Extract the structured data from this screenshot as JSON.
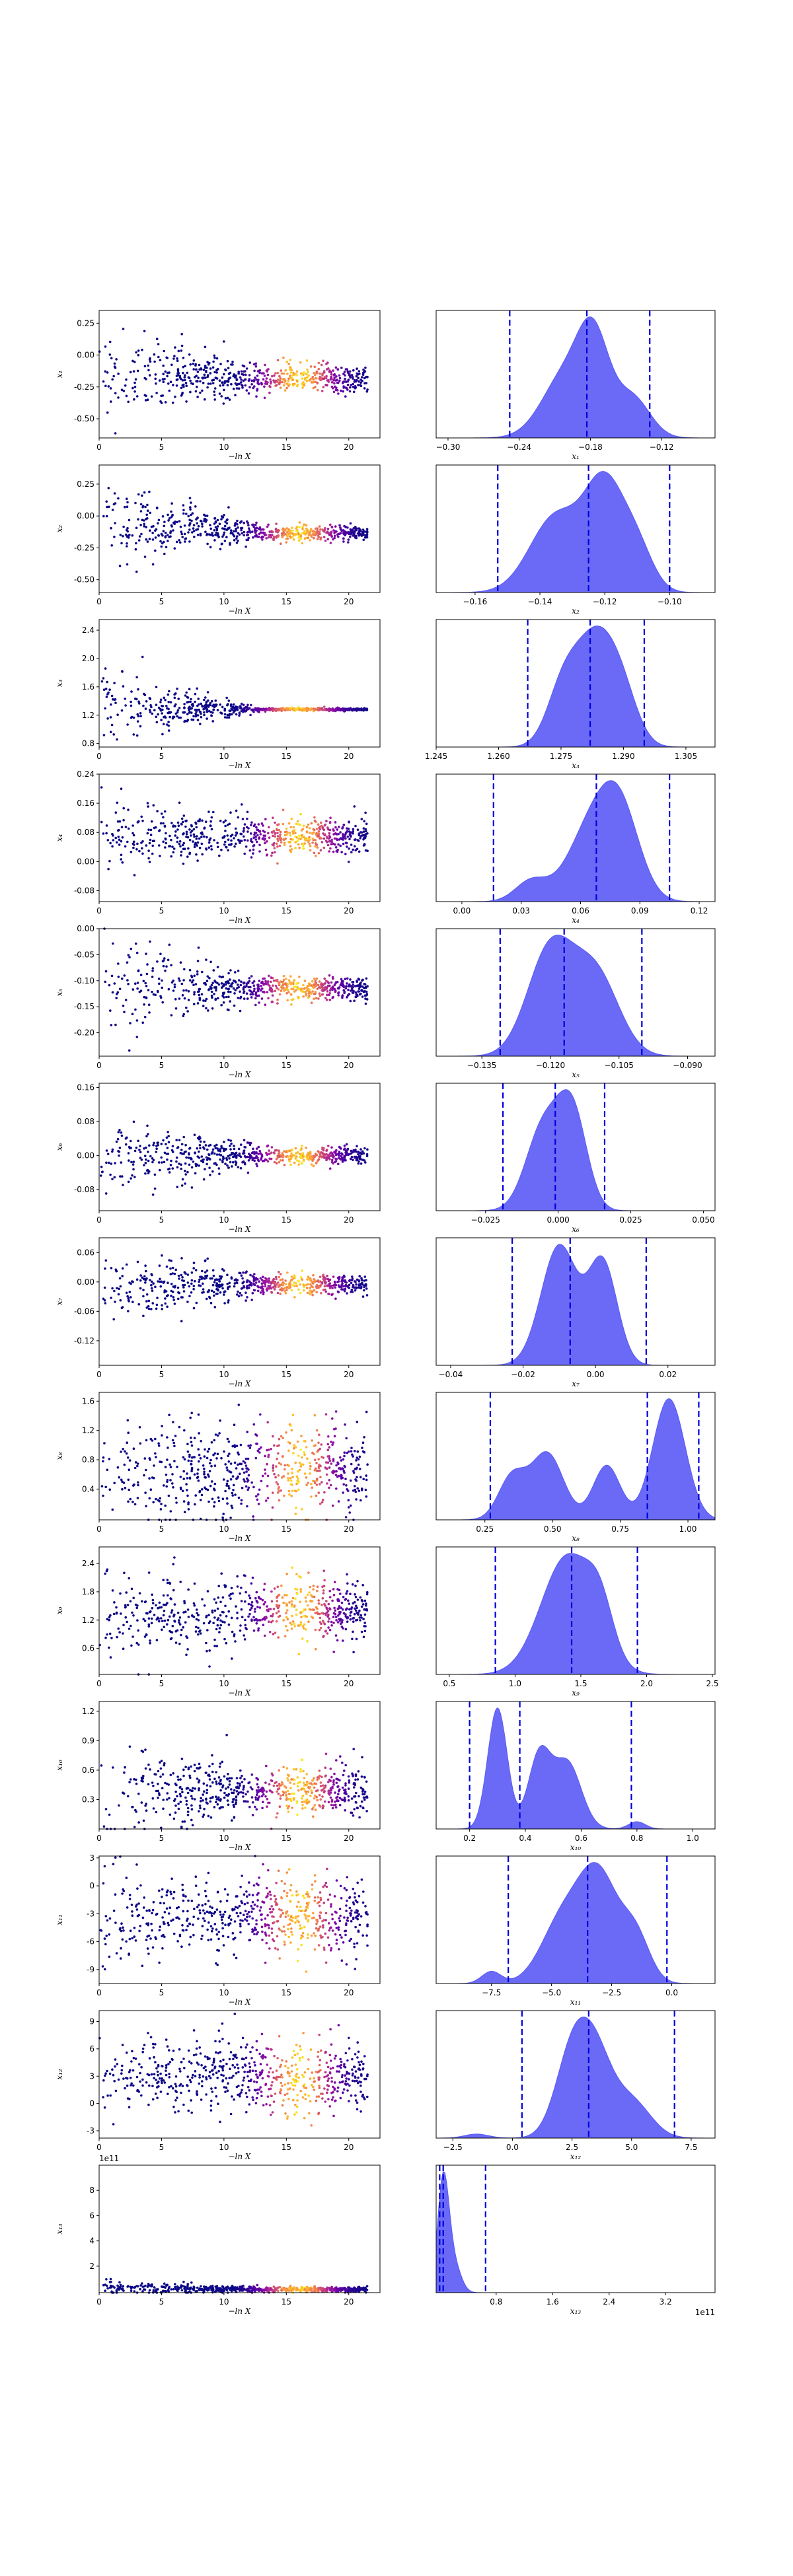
{
  "figure": {
    "trace_xlabel": "−ln X",
    "colormap": [
      "#0d0887",
      "#46039f",
      "#7201a8",
      "#9c179e",
      "#bd3786",
      "#d8576b",
      "#ed7953",
      "#fb9f3a",
      "#fdca26",
      "#f0f921"
    ],
    "kde_fill": "#5a5af5",
    "quantile_line_color": "#0000dd",
    "axis_color": "#000000"
  },
  "chart_data": [
    {
      "type": "scatter",
      "panel": "trace",
      "param": "x1",
      "ylabel": "x₁",
      "xlim": [
        0,
        22.5
      ],
      "ylim": [
        -0.65,
        0.35
      ],
      "xticks": [
        "0",
        "5",
        "10",
        "15",
        "20"
      ],
      "yticks": [
        "-0.50",
        "-0.25",
        "0.00",
        "0.25"
      ],
      "start": [
        -0.15,
        0.18
      ],
      "converge": -0.18,
      "spread": 0.05
    },
    {
      "type": "area",
      "panel": "kde",
      "param": "x1",
      "xlabel": "x₁",
      "xlim": [
        -0.31,
        -0.075
      ],
      "xticks": [
        "−0.30",
        "−0.24",
        "−0.18",
        "−0.12"
      ],
      "quantiles": [
        -0.248,
        -0.183,
        -0.13
      ],
      "peaks": [
        [
          -0.2,
          0.8,
          0.02
        ],
        [
          -0.177,
          1.0,
          0.013
        ],
        [
          -0.145,
          0.5,
          0.015
        ]
      ]
    },
    {
      "type": "scatter",
      "panel": "trace",
      "param": "x2",
      "ylabel": "x₂",
      "xlim": [
        0,
        22.5
      ],
      "ylim": [
        -0.6,
        0.4
      ],
      "xticks": [
        "0",
        "5",
        "10",
        "15",
        "20"
      ],
      "yticks": [
        "-0.50",
        "-0.25",
        "0.00",
        "0.25"
      ],
      "start": [
        -0.05,
        0.18
      ],
      "converge": -0.13,
      "spread": 0.03
    },
    {
      "type": "area",
      "panel": "kde",
      "param": "x2",
      "xlabel": "x₂",
      "xlim": [
        -0.172,
        -0.086
      ],
      "xticks": [
        "−0.16",
        "−0.14",
        "−0.12",
        "−0.10"
      ],
      "quantiles": [
        -0.153,
        -0.125,
        -0.1
      ],
      "peaks": [
        [
          -0.135,
          0.75,
          0.008
        ],
        [
          -0.12,
          1.0,
          0.006
        ],
        [
          -0.11,
          0.4,
          0.005
        ]
      ]
    },
    {
      "type": "scatter",
      "panel": "trace",
      "param": "x3",
      "ylabel": "x₃",
      "xlim": [
        0,
        22.5
      ],
      "ylim": [
        0.75,
        2.55
      ],
      "xticks": [
        "0",
        "5",
        "10",
        "15",
        "20"
      ],
      "yticks": [
        "0.8",
        "1.2",
        "1.6",
        "2.0",
        "2.4"
      ],
      "start": [
        1.3,
        0.25
      ],
      "converge": 1.28,
      "spread": 0.01
    },
    {
      "type": "area",
      "panel": "kde",
      "param": "x3",
      "xlabel": "x₃",
      "xlim": [
        1.245,
        1.312
      ],
      "xticks": [
        "1.245",
        "1.260",
        "1.275",
        "1.290",
        "1.305"
      ],
      "quantiles": [
        1.267,
        1.282,
        1.295
      ],
      "peaks": [
        [
          1.276,
          0.8,
          0.004
        ],
        [
          1.283,
          1.0,
          0.004
        ],
        [
          1.289,
          0.75,
          0.004
        ]
      ]
    },
    {
      "type": "scatter",
      "panel": "trace",
      "param": "x4",
      "ylabel": "x₄",
      "xlim": [
        0,
        22.5
      ],
      "ylim": [
        -0.11,
        0.24
      ],
      "xticks": [
        "0",
        "5",
        "10",
        "15",
        "20"
      ],
      "yticks": [
        "-0.08",
        "0.00",
        "0.08",
        "0.16",
        "0.24"
      ],
      "start": [
        0.07,
        0.05
      ],
      "converge": 0.07,
      "spread": 0.025
    },
    {
      "type": "area",
      "panel": "kde",
      "param": "x4",
      "xlabel": "x₄",
      "xlim": [
        -0.013,
        0.128
      ],
      "xticks": [
        "0.00",
        "0.03",
        "0.06",
        "0.09",
        "0.12"
      ],
      "quantiles": [
        0.016,
        0.068,
        0.105
      ],
      "peaks": [
        [
          0.035,
          0.25,
          0.008
        ],
        [
          0.065,
          0.85,
          0.012
        ],
        [
          0.08,
          1.0,
          0.01
        ]
      ]
    },
    {
      "type": "scatter",
      "panel": "trace",
      "param": "x5",
      "ylabel": "x₅",
      "xlim": [
        0,
        22.5
      ],
      "ylim": [
        -0.245,
        0.0
      ],
      "xticks": [
        "0",
        "5",
        "10",
        "15",
        "20"
      ],
      "yticks": [
        "-0.20",
        "-0.15",
        "-0.10",
        "-0.05",
        "0.00"
      ],
      "start": [
        -0.11,
        0.05
      ],
      "converge": -0.115,
      "spread": 0.012
    },
    {
      "type": "area",
      "panel": "kde",
      "param": "x5",
      "xlabel": "x₅",
      "xlim": [
        -0.145,
        -0.084
      ],
      "xticks": [
        "−0.135",
        "−0.120",
        "−0.105",
        "−0.090"
      ],
      "quantiles": [
        -0.131,
        -0.117,
        -0.1
      ],
      "peaks": [
        [
          -0.12,
          1.0,
          0.005
        ],
        [
          -0.11,
          0.75,
          0.005
        ]
      ]
    },
    {
      "type": "scatter",
      "panel": "trace",
      "param": "x6",
      "ylabel": "x₆",
      "xlim": [
        0,
        22.5
      ],
      "ylim": [
        -0.13,
        0.17
      ],
      "xticks": [
        "0",
        "5",
        "10",
        "15",
        "20"
      ],
      "yticks": [
        "-0.08",
        "0.00",
        "0.08",
        "0.16"
      ],
      "start": [
        0.0,
        0.05
      ],
      "converge": 0.0,
      "spread": 0.01
    },
    {
      "type": "area",
      "panel": "kde",
      "param": "x6",
      "xlabel": "x₆",
      "xlim": [
        -0.042,
        0.054
      ],
      "xticks": [
        "−0.025",
        "0.000",
        "0.025",
        "0.050"
      ],
      "quantiles": [
        -0.019,
        -0.001,
        0.016
      ],
      "peaks": [
        [
          -0.005,
          0.9,
          0.006
        ],
        [
          0.005,
          1.0,
          0.005
        ]
      ]
    },
    {
      "type": "scatter",
      "panel": "trace",
      "param": "x7",
      "ylabel": "x₇",
      "xlim": [
        0,
        22.5
      ],
      "ylim": [
        -0.17,
        0.09
      ],
      "xticks": [
        "0",
        "5",
        "10",
        "15",
        "20"
      ],
      "yticks": [
        "-0.12",
        "-0.06",
        "0.00",
        "0.06"
      ],
      "start": [
        -0.01,
        0.04
      ],
      "converge": -0.005,
      "spread": 0.01
    },
    {
      "type": "area",
      "panel": "kde",
      "param": "x7",
      "xlabel": "x₇",
      "xlim": [
        -0.044,
        0.033
      ],
      "xticks": [
        "−0.04",
        "−0.02",
        "0.00",
        "0.02"
      ],
      "quantiles": [
        -0.023,
        -0.007,
        0.014
      ],
      "peaks": [
        [
          -0.01,
          1.0,
          0.005
        ],
        [
          0.002,
          0.85,
          0.004
        ]
      ]
    },
    {
      "type": "scatter",
      "panel": "trace",
      "param": "x8",
      "ylabel": "x₈",
      "xlim": [
        0,
        22.5
      ],
      "ylim": [
        -0.02,
        1.72
      ],
      "xticks": [
        "0",
        "5",
        "10",
        "15",
        "20"
      ],
      "yticks": [
        "0.4",
        "0.8",
        "1.2",
        "1.6"
      ],
      "start": [
        0.6,
        0.4
      ],
      "converge": 0.7,
      "spread": 0.3
    },
    {
      "type": "area",
      "panel": "kde",
      "param": "x8",
      "xlabel": "x₈",
      "xlim": [
        0.07,
        1.1
      ],
      "xticks": [
        "0.25",
        "0.50",
        "0.75",
        "1.00"
      ],
      "quantiles": [
        0.27,
        0.85,
        1.04
      ],
      "peaks": [
        [
          0.35,
          0.35,
          0.05
        ],
        [
          0.48,
          0.55,
          0.06
        ],
        [
          0.7,
          0.45,
          0.05
        ],
        [
          0.93,
          1.0,
          0.06
        ]
      ]
    },
    {
      "type": "scatter",
      "panel": "trace",
      "param": "x9",
      "ylabel": "x₉",
      "xlim": [
        0,
        22.5
      ],
      "ylim": [
        0.05,
        2.75
      ],
      "xticks": [
        "0",
        "5",
        "10",
        "15",
        "20"
      ],
      "yticks": [
        "0.6",
        "1.2",
        "1.8",
        "2.4"
      ],
      "start": [
        1.3,
        0.55
      ],
      "converge": 1.4,
      "spread": 0.3
    },
    {
      "type": "area",
      "panel": "kde",
      "param": "x9",
      "xlabel": "x₉",
      "xlim": [
        0.4,
        2.52
      ],
      "xticks": [
        "0.5",
        "1.0",
        "1.5",
        "2.0",
        "2.5"
      ],
      "quantiles": [
        0.85,
        1.43,
        1.93
      ],
      "peaks": [
        [
          1.4,
          1.0,
          0.2
        ],
        [
          1.65,
          0.35,
          0.1
        ]
      ]
    },
    {
      "type": "scatter",
      "panel": "trace",
      "param": "x10",
      "ylabel": "x₁₀",
      "xlim": [
        0,
        22.5
      ],
      "ylim": [
        0.0,
        1.3
      ],
      "xticks": [
        "0",
        "5",
        "10",
        "15",
        "20"
      ],
      "yticks": [
        "0.3",
        "0.6",
        "0.9",
        "1.2"
      ],
      "start": [
        0.4,
        0.25
      ],
      "converge": 0.4,
      "spread": 0.12
    },
    {
      "type": "area",
      "panel": "kde",
      "param": "x10",
      "xlabel": "x₁₀",
      "xlim": [
        0.08,
        1.08
      ],
      "xticks": [
        "0.2",
        "0.4",
        "0.6",
        "0.8",
        "1.0"
      ],
      "quantiles": [
        0.2,
        0.38,
        0.78
      ],
      "peaks": [
        [
          0.3,
          1.0,
          0.035
        ],
        [
          0.45,
          0.6,
          0.04
        ],
        [
          0.55,
          0.55,
          0.05
        ],
        [
          0.8,
          0.06,
          0.03
        ]
      ]
    },
    {
      "type": "scatter",
      "panel": "trace",
      "param": "x11",
      "ylabel": "x₁₁",
      "xlim": [
        0,
        22.5
      ],
      "ylim": [
        -10.5,
        3.2
      ],
      "xticks": [
        "0",
        "5",
        "10",
        "15",
        "20"
      ],
      "yticks": [
        "-9",
        "-6",
        "-3",
        "0",
        "3"
      ],
      "start": [
        -3.2,
        2.5
      ],
      "converge": -3.2,
      "spread": 2.0
    },
    {
      "type": "area",
      "panel": "kde",
      "param": "x11",
      "xlabel": "x₁₁",
      "xlim": [
        -9.8,
        1.8
      ],
      "xticks": [
        "−7.5",
        "−5.0",
        "−2.5",
        "0.0"
      ],
      "quantiles": [
        -6.8,
        -3.5,
        -0.2
      ],
      "peaks": [
        [
          -7.5,
          0.12,
          0.4
        ],
        [
          -4.5,
          0.65,
          0.9
        ],
        [
          -3.0,
          1.0,
          0.8
        ],
        [
          -1.5,
          0.45,
          0.6
        ]
      ]
    },
    {
      "type": "scatter",
      "panel": "trace",
      "param": "x12",
      "ylabel": "x₁₂",
      "xlim": [
        0,
        22.5
      ],
      "ylim": [
        -3.8,
        10.2
      ],
      "xticks": [
        "0",
        "5",
        "10",
        "15",
        "20"
      ],
      "yticks": [
        "-3",
        "0",
        "3",
        "6",
        "9"
      ],
      "start": [
        3.0,
        2.0
      ],
      "converge": 3.0,
      "spread": 2.0
    },
    {
      "type": "area",
      "panel": "kde",
      "param": "x12",
      "xlabel": "x₁₂",
      "xlim": [
        -3.2,
        8.5
      ],
      "xticks": [
        "−2.5",
        "0.0",
        "2.5",
        "5.0",
        "7.5"
      ],
      "quantiles": [
        0.4,
        3.2,
        6.8
      ],
      "peaks": [
        [
          -1.5,
          0.05,
          0.5
        ],
        [
          2.5,
          1.0,
          0.7
        ],
        [
          3.5,
          0.9,
          0.7
        ],
        [
          5.0,
          0.45,
          0.8
        ]
      ]
    },
    {
      "type": "scatter",
      "panel": "trace",
      "param": "x13",
      "ylabel": "x₁₃",
      "xlim": [
        0,
        22.5
      ],
      "ylim": [
        -0.1,
        10.0
      ],
      "exponent": "1e11",
      "xticks": [
        "0",
        "5",
        "10",
        "15",
        "20"
      ],
      "yticks": [
        "2",
        "4",
        "6",
        "8"
      ],
      "start": [
        0.3,
        0.3
      ],
      "converge": 0.15,
      "spread": 0.1
    },
    {
      "type": "area",
      "panel": "kde",
      "param": "x13",
      "xlabel": "x₁₃",
      "exponent": "1e11",
      "xlim": [
        -0.05,
        3.9
      ],
      "xticks": [
        "0.8",
        "1.6",
        "2.4",
        "3.2"
      ],
      "quantiles": [
        0.0,
        0.05,
        0.65
      ],
      "peaks": [
        [
          0.05,
          1.0,
          0.08
        ],
        [
          0.2,
          0.25,
          0.1
        ]
      ]
    }
  ]
}
